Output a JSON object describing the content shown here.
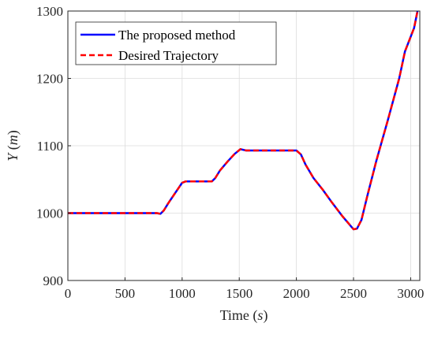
{
  "chart_data": {
    "type": "line",
    "xlabel": "Time (s)",
    "ylabel": "Y (m)",
    "xlim": [
      0,
      3080
    ],
    "ylim": [
      900,
      1300
    ],
    "xticks": [
      0,
      500,
      1000,
      1500,
      2000,
      2500,
      3000
    ],
    "yticks": [
      900,
      1000,
      1100,
      1200,
      1300
    ],
    "x_tick_labels": [
      "0",
      "500",
      "1000",
      "1500",
      "2000",
      "2500",
      "3000"
    ],
    "y_tick_labels": [
      "900",
      "1000",
      "1100",
      "1200",
      "1300"
    ],
    "grid": true,
    "legend_position": "top-left",
    "series": [
      {
        "name": "The proposed method",
        "color": "#0000FF",
        "style": "solid",
        "x": [
          0,
          780,
          810,
          840,
          880,
          940,
          1000,
          1030,
          1060,
          1150,
          1260,
          1290,
          1330,
          1400,
          1460,
          1510,
          1560,
          1700,
          1850,
          2000,
          2040,
          2080,
          2150,
          2230,
          2310,
          2400,
          2470,
          2500,
          2530,
          2570,
          2620,
          2700,
          2800,
          2900,
          2950,
          3030,
          3060
        ],
        "y": [
          1000,
          1000,
          999,
          1004,
          1015,
          1030,
          1045,
          1047,
          1047,
          1047,
          1047,
          1052,
          1063,
          1077,
          1088,
          1095,
          1093,
          1093,
          1093,
          1093,
          1087,
          1072,
          1052,
          1035,
          1016,
          996,
          982,
          976,
          977,
          990,
          1025,
          1078,
          1138,
          1200,
          1240,
          1275,
          1300
        ]
      },
      {
        "name": "Desired Trajectory",
        "color": "#FF0000",
        "style": "dashed",
        "x": [
          0,
          780,
          810,
          840,
          880,
          940,
          1000,
          1030,
          1060,
          1150,
          1260,
          1290,
          1330,
          1400,
          1460,
          1510,
          1560,
          1700,
          1850,
          2000,
          2040,
          2080,
          2150,
          2230,
          2310,
          2400,
          2470,
          2500,
          2530,
          2570,
          2620,
          2700,
          2800,
          2900,
          2950,
          3030,
          3060
        ],
        "y": [
          1000,
          1000,
          999,
          1004,
          1015,
          1030,
          1045,
          1047,
          1047,
          1047,
          1047,
          1052,
          1063,
          1077,
          1088,
          1095,
          1093,
          1093,
          1093,
          1093,
          1087,
          1072,
          1052,
          1035,
          1016,
          996,
          982,
          976,
          977,
          990,
          1025,
          1078,
          1138,
          1200,
          1240,
          1275,
          1300
        ]
      }
    ]
  }
}
